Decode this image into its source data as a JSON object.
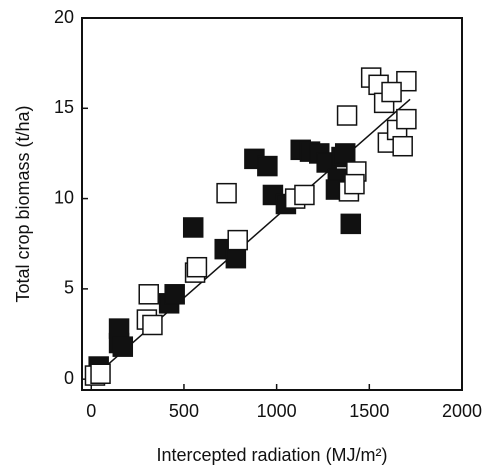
{
  "chart_data": {
    "type": "scatter",
    "xlabel": "Intercepted radiation (MJ/m²)",
    "ylabel": "Total crop biomass (t/ha)",
    "xlim": [
      -50,
      2000
    ],
    "ylim": [
      -0.6,
      20
    ],
    "xticks": [
      0,
      500,
      1000,
      1500,
      2000
    ],
    "yticks": [
      0,
      5,
      10,
      15,
      20
    ],
    "series": [
      {
        "color": "#111111",
        "filled": true,
        "x": [
          40,
          150,
          150,
          170,
          420,
          450,
          550,
          720,
          780,
          880,
          950,
          980,
          1050,
          1130,
          1180,
          1230,
          1270,
          1330,
          1350,
          1370,
          1400,
          1320
        ],
        "values": [
          0.7,
          2.0,
          2.8,
          1.8,
          4.2,
          4.7,
          8.4,
          7.2,
          6.7,
          12.2,
          11.8,
          10.2,
          9.7,
          12.7,
          12.6,
          12.5,
          12.0,
          11.1,
          12.3,
          12.5,
          8.6,
          10.5
        ]
      },
      {
        "color": "#111111",
        "filled": false,
        "x": [
          20,
          50,
          300,
          310,
          330,
          560,
          570,
          730,
          790,
          1100,
          1150,
          1380,
          1390,
          1430,
          1420,
          1510,
          1550,
          1580,
          1600,
          1650,
          1680,
          1700,
          1700,
          1620
        ],
        "values": [
          0.2,
          0.3,
          3.3,
          4.7,
          3.0,
          5.9,
          6.2,
          10.3,
          7.7,
          10.0,
          10.2,
          14.6,
          10.4,
          11.5,
          10.8,
          16.7,
          16.3,
          15.3,
          13.1,
          13.8,
          12.9,
          16.5,
          14.4,
          15.9
        ]
      }
    ],
    "fit_line": {
      "x": [
        0,
        1720
      ],
      "y": [
        0,
        15.5
      ]
    }
  }
}
